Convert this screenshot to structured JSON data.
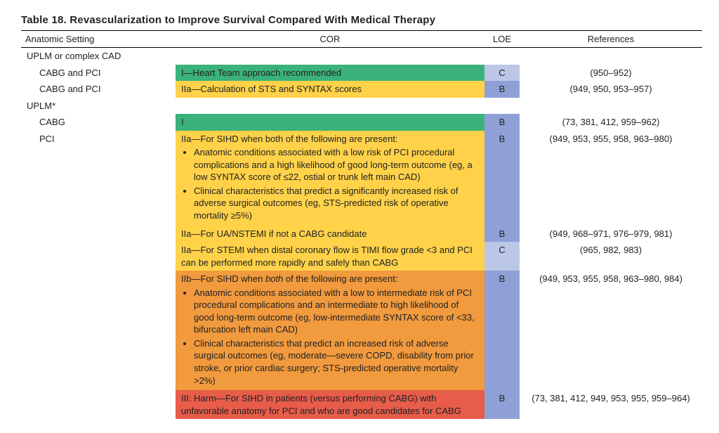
{
  "table": {
    "title": "Table 18.  Revascularization to Improve Survival Compared With Medical Therapy",
    "headers": {
      "anatomic": "Anatomic Setting",
      "cor": "COR",
      "loe": "LOE",
      "refs": "References"
    },
    "section1": "UPLM or complex CAD",
    "section2": "UPLM*",
    "rows": {
      "r1": {
        "anat": "CABG and PCI",
        "cor": "I—Heart Team approach recommended",
        "loe": "C",
        "refs": "(950–952)"
      },
      "r2": {
        "anat": "CABG and PCI",
        "cor": "IIa—Calculation of STS and SYNTAX scores",
        "loe": "B",
        "refs": "(949, 950, 953–957)"
      },
      "r3": {
        "anat": "CABG",
        "cor": "I",
        "loe": "B",
        "refs": "(73, 381, 412, 959–962)"
      },
      "r4": {
        "anat": "PCI",
        "cor_lead": "IIa—For SIHD when both of the following are present:",
        "b1": "Anatomic conditions associated with a low risk of PCI procedural complications and a high likelihood of good long-term outcome (eg, a low SYNTAX score of ≤22, ostial or trunk left main CAD)",
        "b2": "Clinical characteristics that predict a significantly increased risk of adverse surgical outcomes (eg, STS-predicted risk of operative mortality ≥5%)",
        "loe": "B",
        "refs": "(949, 953, 955, 958, 963–980)"
      },
      "r5": {
        "cor": "IIa—For UA/NSTEMI if not a CABG candidate",
        "loe": "B",
        "refs": "(949, 968–971, 976–979, 981)"
      },
      "r6": {
        "cor": "IIa—For STEMI when distal coronary flow is TIMI flow grade <3 and PCI can be performed more rapidly and safely than CABG",
        "loe": "C",
        "refs": "(965, 982, 983)"
      },
      "r7": {
        "cor_lead_pre": "IIb—For SIHD when ",
        "cor_lead_ital": "both",
        "cor_lead_post": " of the following are present:",
        "b1": "Anatomic conditions associated with a low to intermediate risk of PCI procedural complications and an intermediate to high likelihood of good long-term outcome (eg, low-intermediate SYNTAX score of <33, bifurcation left main CAD)",
        "b2": "Clinical characteristics that predict an increased risk of adverse surgical outcomes (eg, moderate—severe COPD, disability from prior stroke, or prior cardiac surgery; STS-predicted operative mortality >2%)",
        "loe": "B",
        "refs": "(949, 953, 955, 958, 963–980, 984)"
      },
      "r8": {
        "cor": "III: Harm—For SIHD in patients (versus performing CABG) with unfavorable anatomy for PCI and who are good candidates for CABG",
        "loe": "B",
        "refs": "(73, 381, 412, 949, 953, 955, 959–964)"
      }
    },
    "colors": {
      "class_I": "#3bb27a",
      "class_IIa": "#ffd24a",
      "class_IIb": "#f19a3e",
      "class_III": "#e85c4a",
      "loe_B": "#8fa0d6",
      "loe_C": "#bcc7e8"
    }
  }
}
